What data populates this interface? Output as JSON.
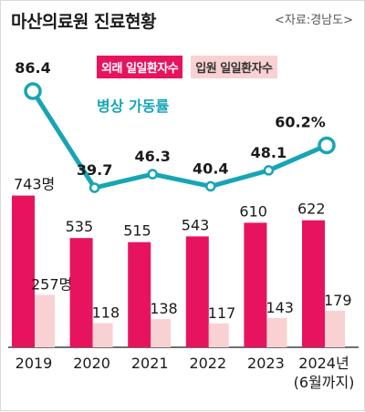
{
  "title": "마산의료원 진료현황",
  "source": "<자료:경남도>",
  "colors": {
    "outpatient": "#e8135f",
    "inpatient": "#f9d1d2",
    "occupancy_line": "#17a5b5",
    "marker_fill": "#ffffff"
  },
  "chart_data": {
    "type": "bar",
    "categories": [
      "2019",
      "2020",
      "2021",
      "2022",
      "2023",
      "2024년"
    ],
    "category_notes": [
      "",
      "",
      "",
      "",
      "",
      "(6월까지)"
    ],
    "series": [
      {
        "name": "외래 일일환자수",
        "values": [
          743,
          535,
          515,
          543,
          610,
          622
        ],
        "labels": [
          "743명",
          "535",
          "515",
          "543",
          "610",
          "622"
        ]
      },
      {
        "name": "입원 일일환자수",
        "values": [
          257,
          118,
          138,
          117,
          143,
          179
        ],
        "labels": [
          "257명",
          "118",
          "138",
          "117",
          "143",
          "179"
        ]
      },
      {
        "name": "병상 가동률",
        "type": "line",
        "values": [
          86.4,
          39.7,
          46.3,
          40.4,
          48.1,
          60.2
        ],
        "labels": [
          "86.4",
          "39.7",
          "46.3",
          "40.4",
          "48.1",
          "60.2%"
        ]
      }
    ],
    "grid": false,
    "legend": "top"
  }
}
